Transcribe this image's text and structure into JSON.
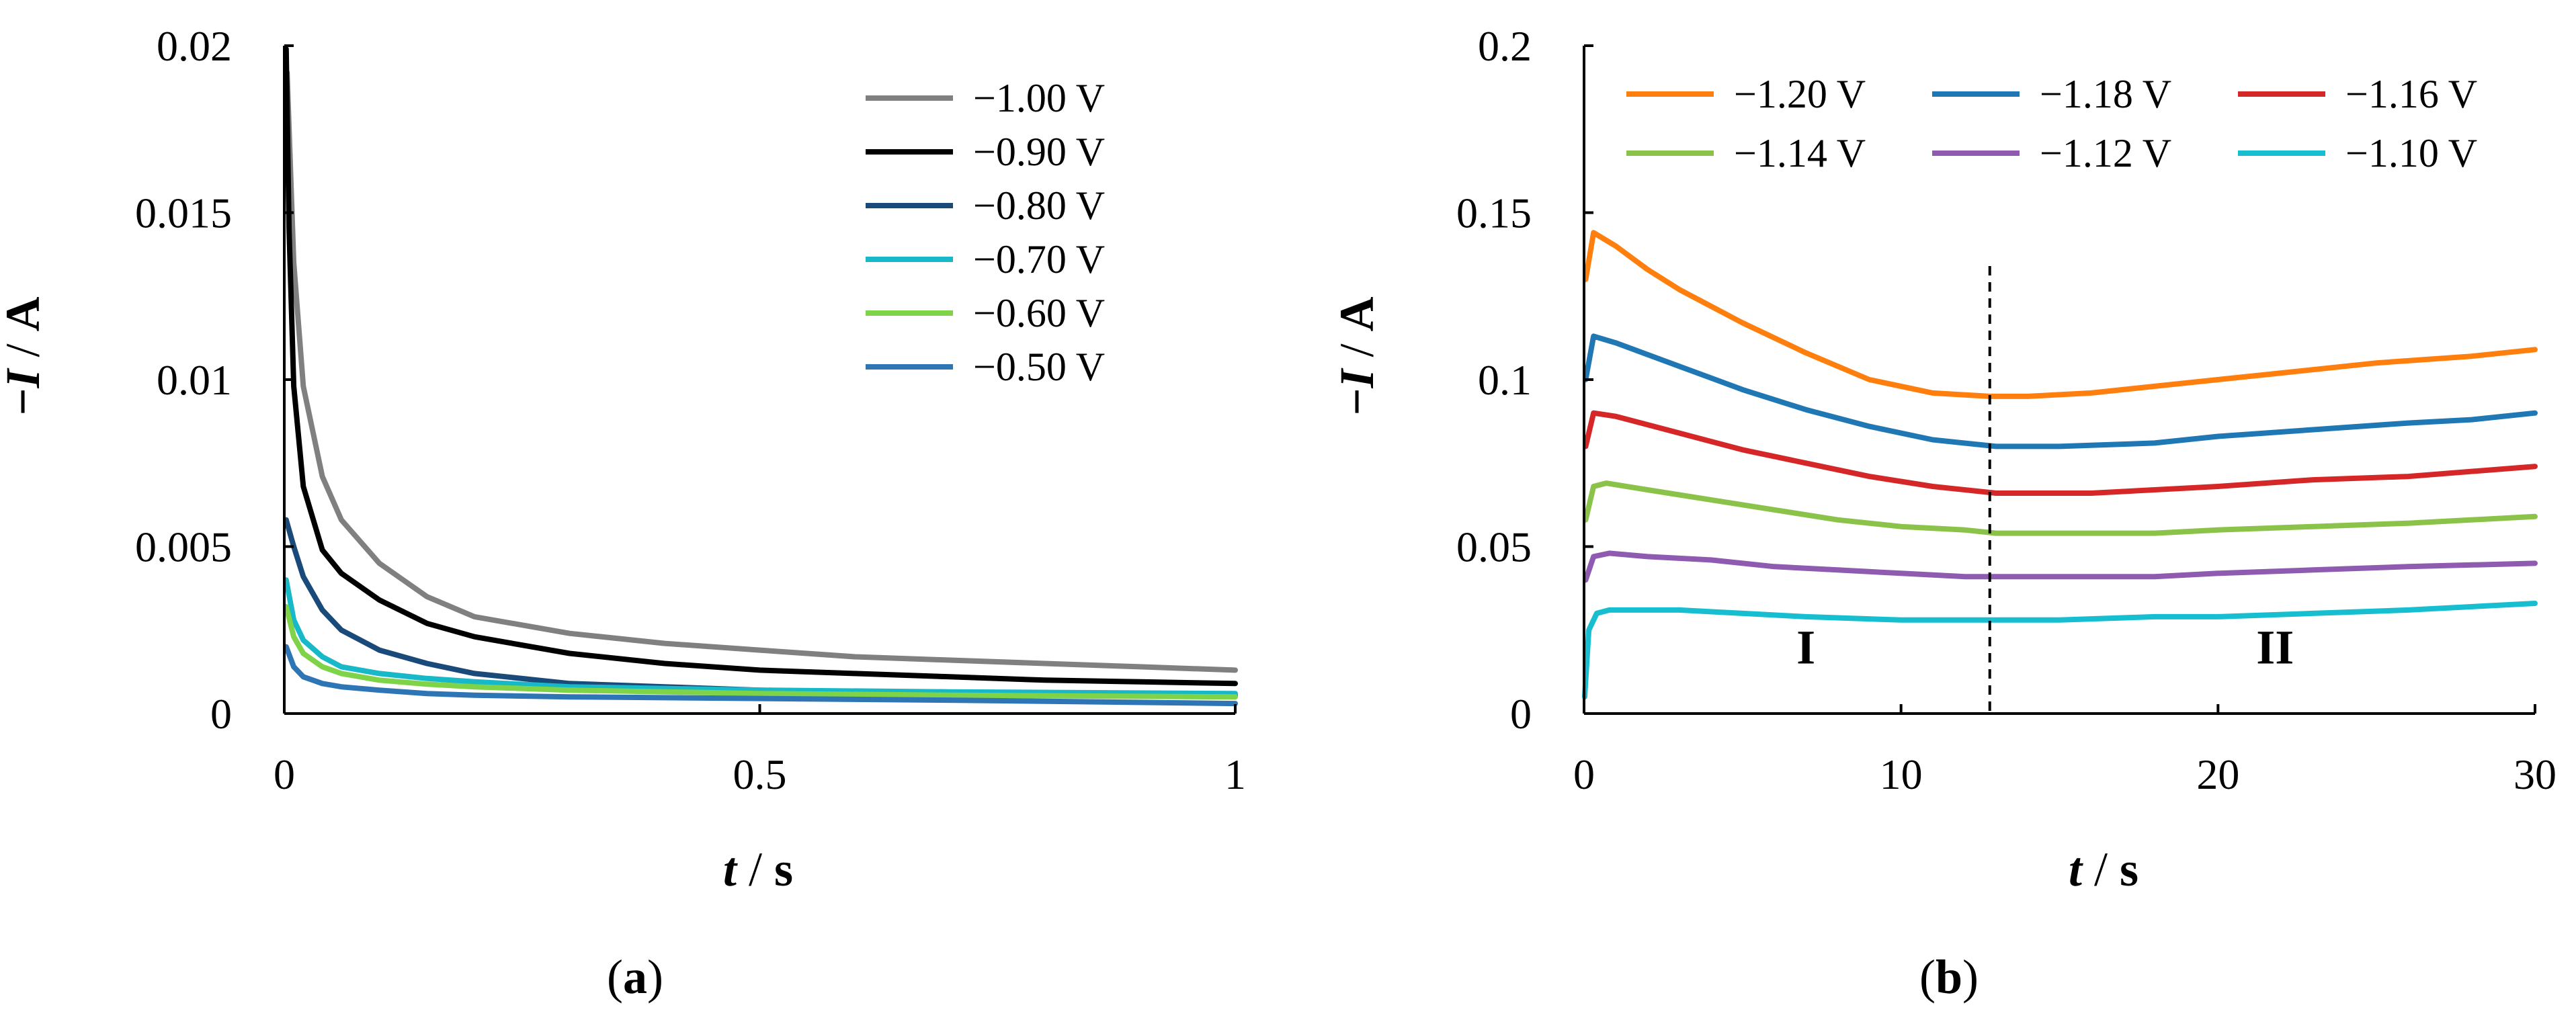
{
  "chart_data": [
    {
      "panel_label": "a",
      "type": "line",
      "xlabel": {
        "var": "t",
        "unit": "s"
      },
      "ylabel": {
        "var": "I",
        "prefix": "−",
        "unit": "A"
      },
      "xlim": [
        0,
        1
      ],
      "ylim": [
        0,
        0.02
      ],
      "x_ticks": [
        0,
        0.5,
        1
      ],
      "x_tick_labels": [
        "0",
        "0.5",
        "1"
      ],
      "y_ticks": [
        0,
        0.005,
        0.01,
        0.015,
        0.02
      ],
      "y_tick_labels": [
        "0",
        "0.005",
        "0.01",
        "0.015",
        "0.02"
      ],
      "legend_position": "top-right",
      "series": [
        {
          "name": "−1.00 V",
          "color": "#808080",
          "x": [
            0.003,
            0.01,
            0.02,
            0.04,
            0.06,
            0.1,
            0.15,
            0.2,
            0.3,
            0.4,
            0.5,
            0.6,
            0.7,
            0.8,
            0.9,
            1.0
          ],
          "values": [
            0.0192,
            0.0135,
            0.0098,
            0.0071,
            0.0058,
            0.0045,
            0.0035,
            0.0029,
            0.0024,
            0.0021,
            0.0019,
            0.0017,
            0.0016,
            0.0015,
            0.0014,
            0.0013
          ]
        },
        {
          "name": "−0.90 V",
          "color": "#000000",
          "x": [
            0.002,
            0.005,
            0.01,
            0.02,
            0.04,
            0.06,
            0.1,
            0.15,
            0.2,
            0.3,
            0.4,
            0.5,
            0.6,
            0.7,
            0.8,
            0.9,
            1.0
          ],
          "values": [
            0.0199,
            0.0145,
            0.0098,
            0.0068,
            0.0049,
            0.0042,
            0.0034,
            0.0027,
            0.0023,
            0.0018,
            0.0015,
            0.0013,
            0.0012,
            0.0011,
            0.001,
            0.00095,
            0.0009
          ]
        },
        {
          "name": "−0.80 V",
          "color": "#1a4a7a",
          "x": [
            0.002,
            0.01,
            0.02,
            0.04,
            0.06,
            0.1,
            0.15,
            0.2,
            0.3,
            0.4,
            0.5,
            0.6,
            0.8,
            1.0
          ],
          "values": [
            0.0058,
            0.005,
            0.0041,
            0.0031,
            0.0025,
            0.0019,
            0.0015,
            0.0012,
            0.0009,
            0.0008,
            0.0007,
            0.00065,
            0.0006,
            0.00055
          ]
        },
        {
          "name": "−0.70 V",
          "color": "#17b8c8",
          "x": [
            0.002,
            0.01,
            0.02,
            0.04,
            0.06,
            0.1,
            0.15,
            0.2,
            0.3,
            0.5,
            0.7,
            1.0
          ],
          "values": [
            0.004,
            0.0028,
            0.0022,
            0.0017,
            0.0014,
            0.0012,
            0.00105,
            0.00095,
            0.0008,
            0.0007,
            0.00065,
            0.0006
          ]
        },
        {
          "name": "−0.60 V",
          "color": "#7ed348",
          "x": [
            0.002,
            0.01,
            0.02,
            0.04,
            0.06,
            0.1,
            0.15,
            0.2,
            0.3,
            0.5,
            0.7,
            1.0
          ],
          "values": [
            0.0032,
            0.0023,
            0.0018,
            0.0014,
            0.0012,
            0.001,
            0.00088,
            0.0008,
            0.0007,
            0.0006,
            0.00055,
            0.0005
          ]
        },
        {
          "name": "−0.50 V",
          "color": "#2e75b6",
          "x": [
            0.002,
            0.01,
            0.02,
            0.04,
            0.06,
            0.1,
            0.15,
            0.2,
            0.3,
            0.5,
            0.7,
            1.0
          ],
          "values": [
            0.002,
            0.0014,
            0.0011,
            0.0009,
            0.0008,
            0.0007,
            0.0006,
            0.00055,
            0.0005,
            0.00045,
            0.0004,
            0.0003
          ]
        }
      ]
    },
    {
      "panel_label": "b",
      "type": "line",
      "xlabel": {
        "var": "t",
        "unit": "s"
      },
      "ylabel": {
        "var": "I",
        "prefix": "−",
        "unit": "A"
      },
      "xlim": [
        0,
        30
      ],
      "ylim": [
        0,
        0.2
      ],
      "x_ticks": [
        0,
        10,
        20,
        30
      ],
      "x_tick_labels": [
        "0",
        "10",
        "20",
        "30"
      ],
      "y_ticks": [
        0,
        0.05,
        0.1,
        0.15,
        0.2
      ],
      "y_tick_labels": [
        "0",
        "0.05",
        "0.1",
        "0.15",
        "0.2"
      ],
      "legend_position": "top",
      "vline": {
        "x": 12.8,
        "style": "dashed"
      },
      "regions": [
        {
          "label": "I",
          "x": 7,
          "y": 0.015
        },
        {
          "label": "II",
          "x": 21.8,
          "y": 0.015
        }
      ],
      "series": [
        {
          "name": "−1.20 V",
          "color": "#ff7f0e",
          "x": [
            0.05,
            0.3,
            1,
            2,
            3,
            5,
            7,
            9,
            11,
            12.8,
            14,
            16,
            18,
            20,
            22,
            25,
            28,
            30
          ],
          "values": [
            0.13,
            0.144,
            0.14,
            0.133,
            0.127,
            0.117,
            0.108,
            0.1,
            0.096,
            0.095,
            0.095,
            0.096,
            0.098,
            0.1,
            0.102,
            0.105,
            0.107,
            0.109
          ]
        },
        {
          "name": "−1.18 V",
          "color": "#1f77b4",
          "x": [
            0.05,
            0.3,
            1,
            3,
            5,
            7,
            9,
            11,
            13,
            15,
            18,
            20,
            23,
            26,
            28,
            30
          ],
          "values": [
            0.1,
            0.113,
            0.111,
            0.104,
            0.097,
            0.091,
            0.086,
            0.082,
            0.08,
            0.08,
            0.081,
            0.083,
            0.085,
            0.087,
            0.088,
            0.09
          ]
        },
        {
          "name": "−1.16 V",
          "color": "#d62728",
          "x": [
            0.05,
            0.3,
            1,
            3,
            5,
            7,
            9,
            11,
            13,
            14,
            16,
            18,
            20,
            23,
            26,
            30
          ],
          "values": [
            0.08,
            0.09,
            0.089,
            0.084,
            0.079,
            0.075,
            0.071,
            0.068,
            0.066,
            0.066,
            0.066,
            0.067,
            0.068,
            0.07,
            0.071,
            0.074
          ]
        },
        {
          "name": "−1.14 V",
          "color": "#8bc34a",
          "x": [
            0.05,
            0.3,
            0.7,
            2,
            4,
            6,
            8,
            10,
            12,
            13,
            15,
            18,
            20,
            23,
            26,
            30
          ],
          "values": [
            0.058,
            0.068,
            0.069,
            0.067,
            0.064,
            0.061,
            0.058,
            0.056,
            0.055,
            0.054,
            0.054,
            0.054,
            0.055,
            0.056,
            0.057,
            0.059
          ]
        },
        {
          "name": "−1.12 V",
          "color": "#8e5bb0",
          "x": [
            0.05,
            0.3,
            0.8,
            2,
            4,
            6,
            8,
            10,
            12,
            14,
            16,
            18,
            20,
            23,
            26,
            30
          ],
          "values": [
            0.04,
            0.047,
            0.048,
            0.047,
            0.046,
            0.044,
            0.043,
            0.042,
            0.041,
            0.041,
            0.041,
            0.041,
            0.042,
            0.043,
            0.044,
            0.045
          ]
        },
        {
          "name": "−1.10 V",
          "color": "#17becf",
          "x": [
            0.02,
            0.15,
            0.4,
            0.8,
            1.5,
            3,
            5,
            7,
            10,
            13,
            15,
            18,
            20,
            23,
            26,
            30
          ],
          "values": [
            0.005,
            0.025,
            0.03,
            0.031,
            0.031,
            0.031,
            0.03,
            0.029,
            0.028,
            0.028,
            0.028,
            0.029,
            0.029,
            0.03,
            0.031,
            0.033
          ]
        }
      ]
    }
  ]
}
